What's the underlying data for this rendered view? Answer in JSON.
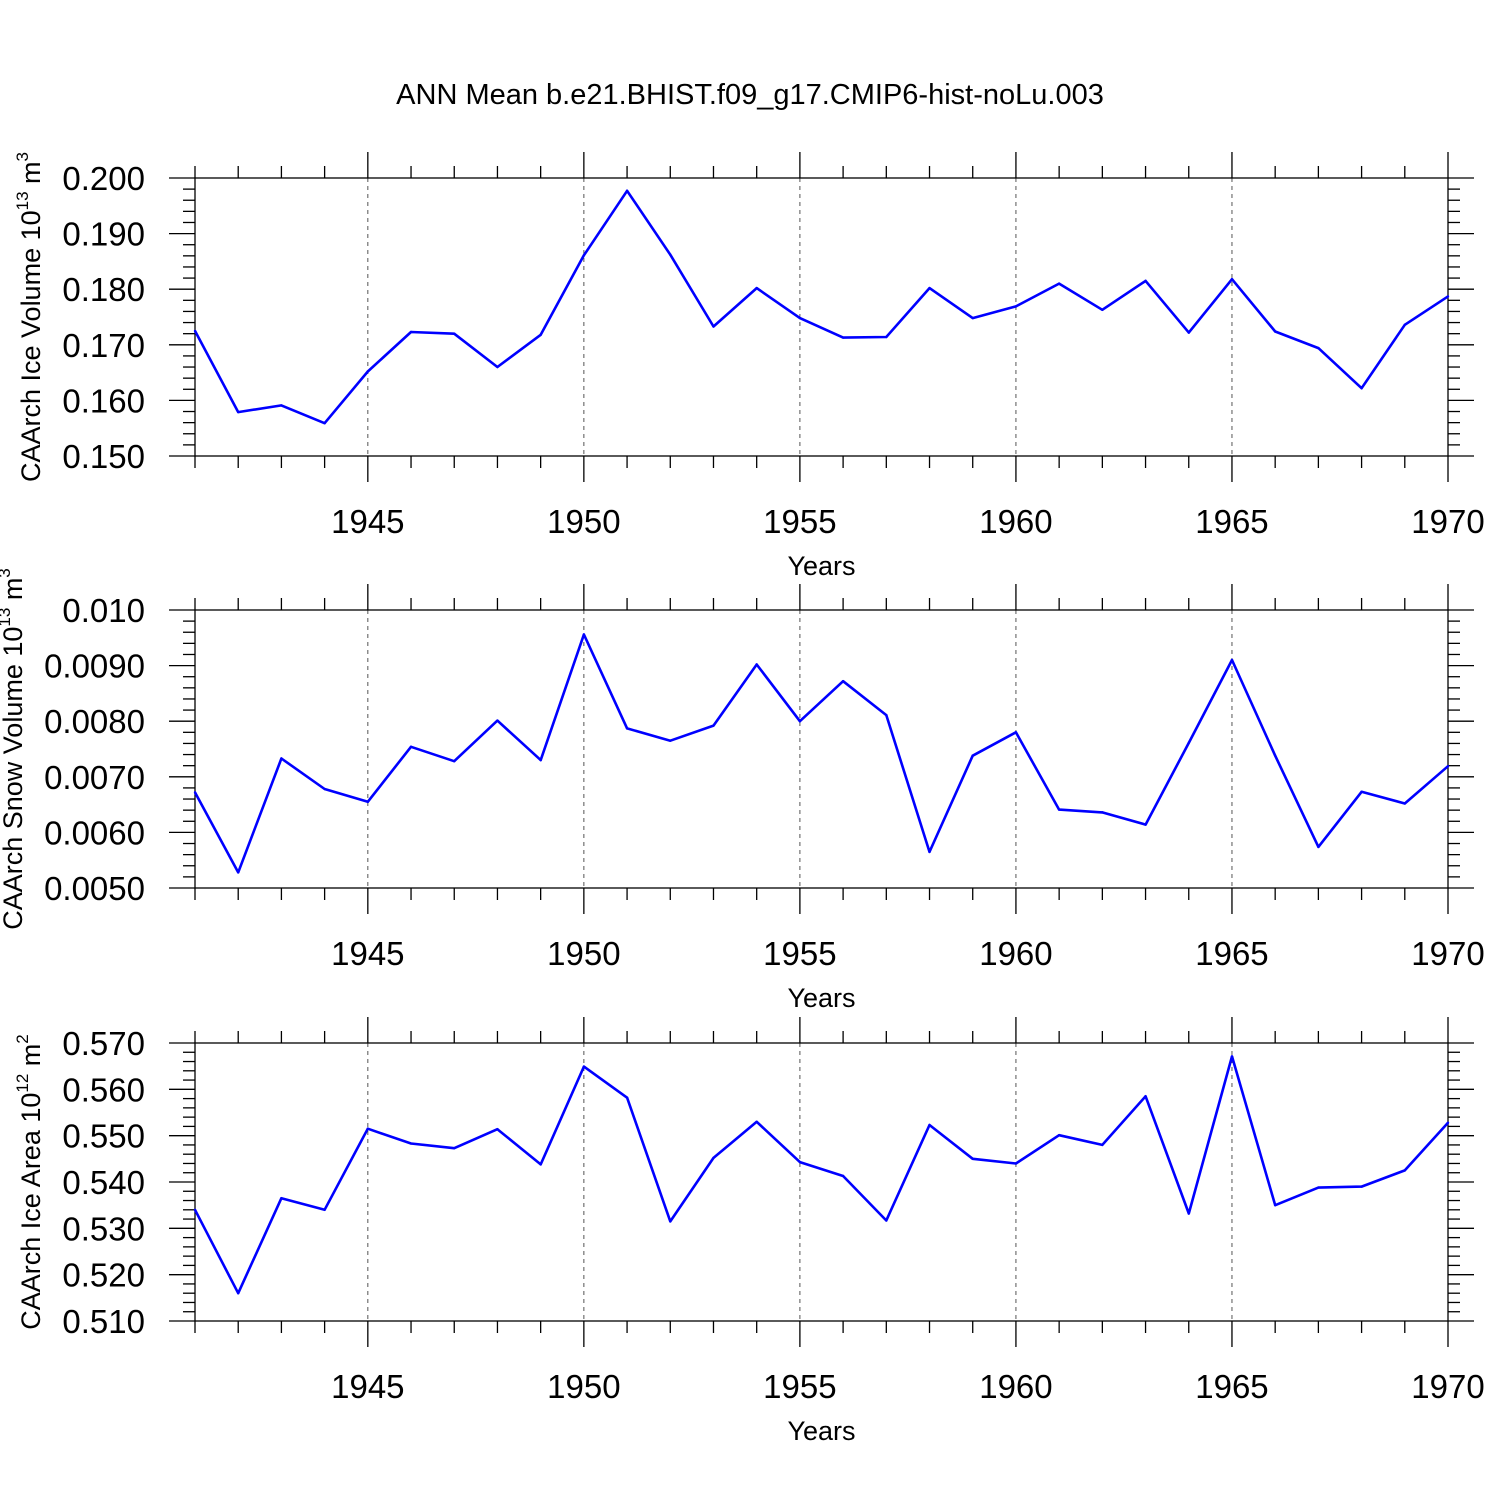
{
  "title": "ANN Mean b.e21.BHIST.f09_g17.CMIP6-hist-noLu.003",
  "line_color": "#0000ff",
  "chart_data": [
    {
      "type": "line",
      "ylabel": "CAArch Ice Volume 10",
      "ylabel_exp": "13",
      "ylabel_unit": " m",
      "ylabel_unit_exp": "3",
      "xlabel": "Years",
      "xlim": [
        1941,
        1970
      ],
      "ylim": [
        0.15,
        0.2
      ],
      "xticks": [
        "1945",
        "1950",
        "1955",
        "1960",
        "1965",
        "1970"
      ],
      "yticks": [
        "0.150",
        "0.160",
        "0.170",
        "0.180",
        "0.190",
        "0.200"
      ],
      "grid": "dashed vertical at major x ticks",
      "series": [
        {
          "x": [
            1941,
            1942,
            1943,
            1944,
            1945,
            1946,
            1947,
            1948,
            1949,
            1950,
            1951,
            1952,
            1953,
            1954,
            1955,
            1956,
            1957,
            1958,
            1959,
            1960,
            1961,
            1962,
            1963,
            1964,
            1965,
            1966,
            1967,
            1968,
            1969,
            1970
          ],
          "values": [
            0.1725,
            0.1579,
            0.1591,
            0.1559,
            0.1652,
            0.1723,
            0.172,
            0.166,
            0.1718,
            0.1861,
            0.1977,
            0.1862,
            0.1733,
            0.1802,
            0.1748,
            0.1713,
            0.1714,
            0.1802,
            0.1748,
            0.1769,
            0.181,
            0.1763,
            0.1815,
            0.1722,
            0.1818,
            0.1724,
            0.1694,
            0.1622,
            0.1736,
            0.1787
          ]
        }
      ]
    },
    {
      "type": "line",
      "ylabel": "CAArch Snow Volume 10",
      "ylabel_exp": "13",
      "ylabel_unit": " m",
      "ylabel_unit_exp": "3",
      "xlabel": "Years",
      "xlim": [
        1941,
        1970
      ],
      "ylim": [
        0.005,
        0.01
      ],
      "xticks": [
        "1945",
        "1950",
        "1955",
        "1960",
        "1965",
        "1970"
      ],
      "yticks": [
        "0.0050",
        "0.0060",
        "0.0070",
        "0.0080",
        "0.0090",
        "0.010"
      ],
      "grid": "dashed vertical at major x ticks",
      "series": [
        {
          "x": [
            1941,
            1942,
            1943,
            1944,
            1945,
            1946,
            1947,
            1948,
            1949,
            1950,
            1951,
            1952,
            1953,
            1954,
            1955,
            1956,
            1957,
            1958,
            1959,
            1960,
            1961,
            1962,
            1963,
            1964,
            1965,
            1966,
            1967,
            1968,
            1969,
            1970
          ],
          "values": [
            0.00672,
            0.00528,
            0.00733,
            0.00678,
            0.00655,
            0.00754,
            0.00728,
            0.00801,
            0.0073,
            0.00956,
            0.00787,
            0.00765,
            0.00792,
            0.00902,
            0.008,
            0.00872,
            0.00811,
            0.00565,
            0.00738,
            0.0078,
            0.00641,
            0.00636,
            0.00614,
            0.00761,
            0.0091,
            0.00738,
            0.00574,
            0.00673,
            0.00652,
            0.00719
          ]
        }
      ]
    },
    {
      "type": "line",
      "ylabel": "CAArch Ice Area 10",
      "ylabel_exp": "12",
      "ylabel_unit": " m",
      "ylabel_unit_exp": "2",
      "xlabel": "Years",
      "xlim": [
        1941,
        1970
      ],
      "ylim": [
        0.51,
        0.57
      ],
      "xticks": [
        "1945",
        "1950",
        "1955",
        "1960",
        "1965",
        "1970"
      ],
      "yticks": [
        "0.510",
        "0.520",
        "0.530",
        "0.540",
        "0.550",
        "0.560",
        "0.570"
      ],
      "grid": "dashed vertical at major x ticks",
      "series": [
        {
          "x": [
            1941,
            1942,
            1943,
            1944,
            1945,
            1946,
            1947,
            1948,
            1949,
            1950,
            1951,
            1952,
            1953,
            1954,
            1955,
            1956,
            1957,
            1958,
            1959,
            1960,
            1961,
            1962,
            1963,
            1964,
            1965,
            1966,
            1967,
            1968,
            1969,
            1970
          ],
          "values": [
            0.534,
            0.516,
            0.5365,
            0.534,
            0.5515,
            0.5483,
            0.5473,
            0.5514,
            0.5438,
            0.5649,
            0.5582,
            0.5315,
            0.5452,
            0.553,
            0.5443,
            0.5413,
            0.5317,
            0.5523,
            0.545,
            0.544,
            0.5501,
            0.548,
            0.5585,
            0.5332,
            0.5671,
            0.535,
            0.5388,
            0.539,
            0.5425,
            0.5528
          ]
        }
      ]
    }
  ]
}
